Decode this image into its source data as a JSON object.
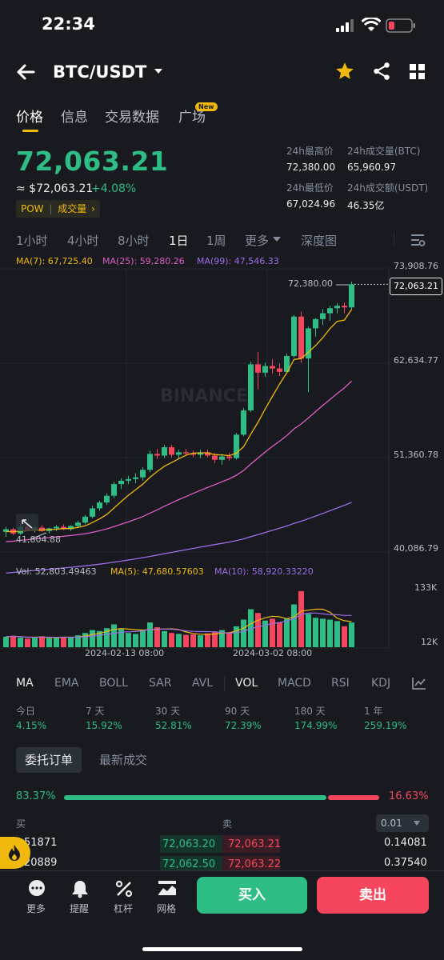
{
  "status": {
    "time": "22:34"
  },
  "header": {
    "pair": "BTC/USDT"
  },
  "tabs": [
    {
      "label": "价格"
    },
    {
      "label": "信息"
    },
    {
      "label": "交易数据"
    },
    {
      "label": "广场"
    }
  ],
  "new_badge": "New",
  "price": {
    "last": "72,063.21",
    "usd": "≈ $72,063.21",
    "change_pct": "+4.08%",
    "pow_label": "POW",
    "vol_tag": "成交量"
  },
  "stats": {
    "high_label": "24h最高价",
    "high": "72,380.00",
    "vol_btc_label": "24h成交量(BTC)",
    "vol_btc": "65,960.97",
    "low_label": "24h最低价",
    "low": "67,024.96",
    "vol_usdt_label": "24h成交额(USDT)",
    "vol_usdt": "46.35亿"
  },
  "intervals": [
    {
      "label": "1小时"
    },
    {
      "label": "4小时"
    },
    {
      "label": "8小时"
    },
    {
      "label": "1日"
    },
    {
      "label": "1周"
    },
    {
      "label": "更多"
    },
    {
      "label": "深度图"
    }
  ],
  "ma_legend": {
    "ma7": "MA(7): 67,725.40",
    "ma25": "MA(25): 59,280.26",
    "ma99": "MA(99): 47,546.33"
  },
  "chart_data": {
    "type": "candlestick",
    "y_ticks": [
      "73,908.76",
      "62,634.77",
      "51,360.78",
      "40,086.79"
    ],
    "ylim": [
      40086.79,
      73908.76
    ],
    "high_label": "72,380.00",
    "low_label": "41,804.88",
    "last_label": "72,063.21",
    "x_ticks": [
      "2024-02-13 08:00",
      "2024-03-02 08:00"
    ],
    "vol_ticks": [
      "133K",
      "12K"
    ],
    "vol_legend": {
      "vol": "Vol: 52,803.49463",
      "ma5": "MA(5): 47,680.57603",
      "ma10": "MA(10): 58,920.33220"
    },
    "candles": [
      [
        42500,
        43100,
        41900,
        42800
      ],
      [
        42800,
        43000,
        42100,
        42300
      ],
      [
        42300,
        43400,
        42100,
        43100
      ],
      [
        43100,
        43500,
        42600,
        42700
      ],
      [
        42700,
        43200,
        42400,
        43000
      ],
      [
        43000,
        43300,
        42500,
        42600
      ],
      [
        42600,
        43000,
        42300,
        42900
      ],
      [
        42900,
        43300,
        42600,
        43100
      ],
      [
        43100,
        43400,
        42700,
        42800
      ],
      [
        42800,
        43300,
        42600,
        43200
      ],
      [
        43200,
        43800,
        42900,
        43600
      ],
      [
        43600,
        44500,
        43400,
        44300
      ],
      [
        44300,
        45600,
        44100,
        45300
      ],
      [
        45300,
        46200,
        45000,
        46000
      ],
      [
        46000,
        47100,
        45700,
        46800
      ],
      [
        46800,
        48500,
        46500,
        48200
      ],
      [
        48200,
        48900,
        47600,
        48600
      ],
      [
        48600,
        49200,
        48200,
        48800
      ],
      [
        48800,
        49500,
        48300,
        49000
      ],
      [
        49000,
        50200,
        48600,
        49900
      ],
      [
        49900,
        52200,
        49600,
        51800
      ],
      [
        51800,
        52400,
        51200,
        51600
      ],
      [
        51600,
        52900,
        51300,
        52600
      ],
      [
        52600,
        52900,
        51400,
        51700
      ],
      [
        51700,
        52300,
        51200,
        52000
      ],
      [
        52000,
        52400,
        51600,
        51900
      ],
      [
        51900,
        52200,
        51400,
        51700
      ],
      [
        51700,
        52300,
        51300,
        52000
      ],
      [
        52000,
        52300,
        51400,
        51600
      ],
      [
        51600,
        51900,
        50700,
        51100
      ],
      [
        51100,
        51800,
        50500,
        51500
      ],
      [
        51500,
        51900,
        51000,
        51300
      ],
      [
        51300,
        54300,
        51100,
        54100
      ],
      [
        54100,
        57300,
        53900,
        57000
      ],
      [
        57000,
        62800,
        56800,
        62500
      ],
      [
        62500,
        64000,
        59500,
        61500
      ],
      [
        61500,
        62700,
        61000,
        62300
      ],
      [
        62300,
        63100,
        61400,
        62000
      ],
      [
        62000,
        62600,
        61100,
        61600
      ],
      [
        61600,
        63800,
        61500,
        63500
      ],
      [
        63500,
        68400,
        63300,
        68200
      ],
      [
        68200,
        68800,
        62700,
        63200
      ],
      [
        63200,
        67000,
        59200,
        66800
      ],
      [
        66800,
        68000,
        65800,
        67900
      ],
      [
        67900,
        69100,
        67200,
        68600
      ],
      [
        68600,
        69500,
        67700,
        69200
      ],
      [
        69200,
        69800,
        68600,
        69500
      ],
      [
        69500,
        69900,
        68600,
        69300
      ],
      [
        69300,
        72380,
        69000,
        72063
      ]
    ],
    "volumes": [
      22,
      24,
      20,
      18,
      21,
      23,
      19,
      20,
      22,
      21,
      25,
      30,
      36,
      34,
      40,
      48,
      38,
      30,
      28,
      36,
      52,
      42,
      34,
      30,
      28,
      26,
      27,
      25,
      29,
      32,
      36,
      30,
      44,
      58,
      80,
      72,
      56,
      60,
      52,
      60,
      90,
      118,
      70,
      62,
      60,
      58,
      55,
      44,
      52
    ]
  },
  "indicators": [
    {
      "label": "MA"
    },
    {
      "label": "EMA"
    },
    {
      "label": "BOLL"
    },
    {
      "label": "SAR"
    },
    {
      "label": "AVL"
    },
    {
      "label": "VOL"
    },
    {
      "label": "MACD"
    },
    {
      "label": "RSI"
    },
    {
      "label": "KDJ"
    }
  ],
  "performance": [
    {
      "period": "今日",
      "value": "4.15%"
    },
    {
      "period": "7 天",
      "value": "15.92%"
    },
    {
      "period": "30 天",
      "value": "52.81%"
    },
    {
      "period": "90 天",
      "value": "72.39%"
    },
    {
      "period": "180 天",
      "value": "174.99%"
    },
    {
      "period": "1 年",
      "value": "259.19%"
    }
  ],
  "orderbook": {
    "tab_orders": "委托订单",
    "tab_trades": "最新成交",
    "buy_ratio": "83.37%",
    "sell_ratio": "16.63%",
    "buy_header": "买",
    "sell_header": "卖",
    "precision": "0.01",
    "rows": [
      {
        "bid_qty": "51871",
        "bid": "72,063.20",
        "ask": "72,063.21",
        "ask_qty": "0.14081"
      },
      {
        "bid_qty": "20889",
        "bid": "72,062.50",
        "ask": "72,063.22",
        "ask_qty": "0.37540"
      }
    ]
  },
  "bottom": {
    "more": "更多",
    "alert": "提醒",
    "leverage": "杠杆",
    "grid": "网格",
    "buy": "买入",
    "sell": "卖出"
  }
}
